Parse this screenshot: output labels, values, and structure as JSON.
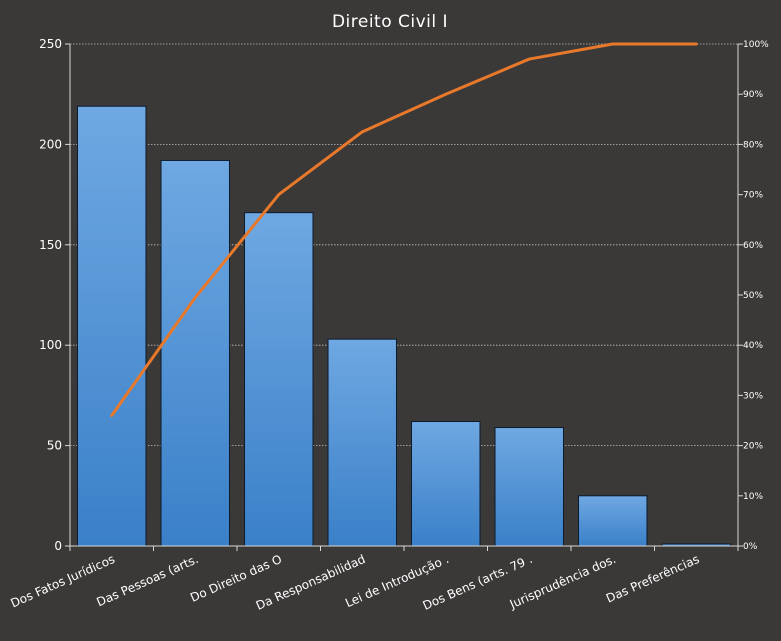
{
  "chart_data": {
    "type": "bar",
    "title": "Direito Civil I",
    "categories": [
      "Dos Fatos Jurídicos",
      "Das Pessoas (arts.",
      "Do Direito das O",
      "Da Responsabilidad",
      "Lei de Introdução  .",
      "Dos Bens (arts. 79 .",
      "Jurisprudência dos.",
      "Das Preferências"
    ],
    "series": [
      {
        "type": "bar",
        "values": [
          219,
          192,
          166,
          103,
          62,
          59,
          25,
          1
        ]
      },
      {
        "type": "line",
        "axis": "right",
        "values": [
          26,
          49.5,
          70,
          82.5,
          90,
          97,
          100,
          100
        ]
      }
    ],
    "y_left": {
      "min": 0,
      "max": 250,
      "ticks": [
        "0",
        "50",
        "100",
        "150",
        "200",
        "250"
      ],
      "tick_values": [
        0,
        50,
        100,
        150,
        200,
        250
      ]
    },
    "y_right": {
      "min": 0,
      "max": 100,
      "ticks": [
        "0%",
        "10%",
        "20%",
        "30%",
        "40%",
        "50%",
        "60%",
        "70%",
        "80%",
        "90%",
        "100%"
      ],
      "tick_values": [
        0,
        10,
        20,
        30,
        40,
        50,
        60,
        70,
        80,
        90,
        100
      ]
    },
    "grid": true,
    "colors": {
      "background": "#3b3938",
      "bar_top": "#6fa8e2",
      "bar_bottom": "#3a80c8",
      "bar_stroke": "#0d1b2e",
      "line": "#e8792b",
      "grid": "#bfbfbf",
      "axis": "#d9d9d9",
      "text": "#ffffff"
    }
  }
}
